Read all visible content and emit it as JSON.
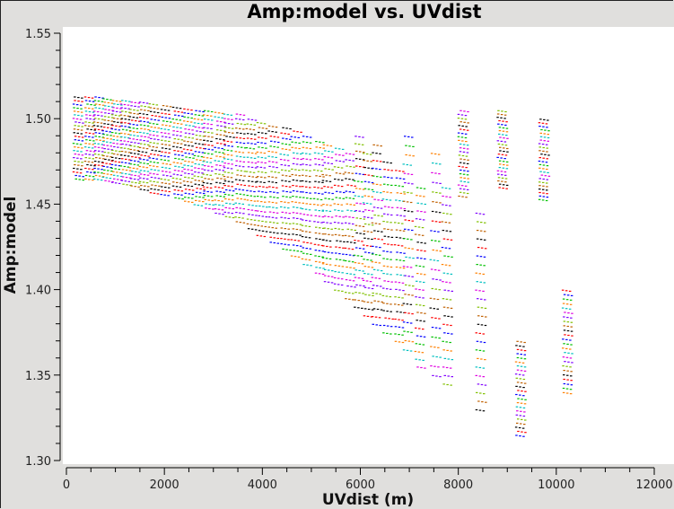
{
  "chart_data": {
    "type": "scatter",
    "title": "Amp:model vs. UVdist",
    "xlabel": "UVdist (m)",
    "ylabel": "Amp:model",
    "xlim": [
      0,
      12000
    ],
    "ylim": [
      1.3,
      1.55
    ],
    "xticks": [
      "0",
      "2000",
      "4000",
      "6000",
      "8000",
      "10000",
      "12000"
    ],
    "yticks": [
      "1.30",
      "1.35",
      "1.40",
      "1.45",
      "1.50",
      "1.55"
    ],
    "grid": false,
    "colors": [
      "#000000",
      "#ff0000",
      "#0000ff",
      "#00c000",
      "#ff8000",
      "#00c0c0",
      "#e000e0",
      "#8000ff",
      "#80c000",
      "#c06000"
    ],
    "clusters_columns": [
      "uvdist",
      "amp_max",
      "amp_min"
    ],
    "clusters": [
      [
        240,
        1.513,
        1.465
      ],
      [
        475,
        1.513,
        1.465
      ],
      [
        660,
        1.513,
        1.465
      ],
      [
        840,
        1.512,
        1.464
      ],
      [
        1025,
        1.511,
        1.463
      ],
      [
        1210,
        1.511,
        1.462
      ],
      [
        1390,
        1.51,
        1.461
      ],
      [
        1575,
        1.51,
        1.459
      ],
      [
        1795,
        1.509,
        1.457
      ],
      [
        2030,
        1.508,
        1.456
      ],
      [
        2270,
        1.507,
        1.454
      ],
      [
        2490,
        1.506,
        1.452
      ],
      [
        2710,
        1.505,
        1.45
      ],
      [
        2895,
        1.505,
        1.448
      ],
      [
        3130,
        1.504,
        1.445
      ],
      [
        3315,
        1.503,
        1.443
      ],
      [
        3550,
        1.503,
        1.44
      ],
      [
        3775,
        1.5,
        1.436
      ],
      [
        3990,
        1.498,
        1.432
      ],
      [
        4230,
        1.496,
        1.428
      ],
      [
        4470,
        1.495,
        1.424
      ],
      [
        4690,
        1.493,
        1.42
      ],
      [
        4910,
        1.49,
        1.415
      ],
      [
        5150,
        1.487,
        1.41
      ],
      [
        5330,
        1.485,
        1.405
      ],
      [
        5570,
        1.483,
        1.4
      ],
      [
        5790,
        1.48,
        1.395
      ],
      [
        5975,
        1.49,
        1.39
      ],
      [
        6155,
        1.48,
        1.385
      ],
      [
        6340,
        1.485,
        1.38
      ],
      [
        6560,
        1.475,
        1.375
      ],
      [
        6800,
        1.47,
        1.37
      ],
      [
        6980,
        1.49,
        1.365
      ],
      [
        7220,
        1.46,
        1.355
      ],
      [
        7530,
        1.48,
        1.35
      ],
      [
        7770,
        1.46,
        1.345
      ],
      [
        8100,
        1.505,
        1.455
      ],
      [
        8460,
        1.445,
        1.33
      ],
      [
        8900,
        1.505,
        1.46
      ],
      [
        9270,
        1.37,
        1.315
      ],
      [
        9750,
        1.5,
        1.453
      ],
      [
        10220,
        1.4,
        1.34
      ]
    ]
  }
}
